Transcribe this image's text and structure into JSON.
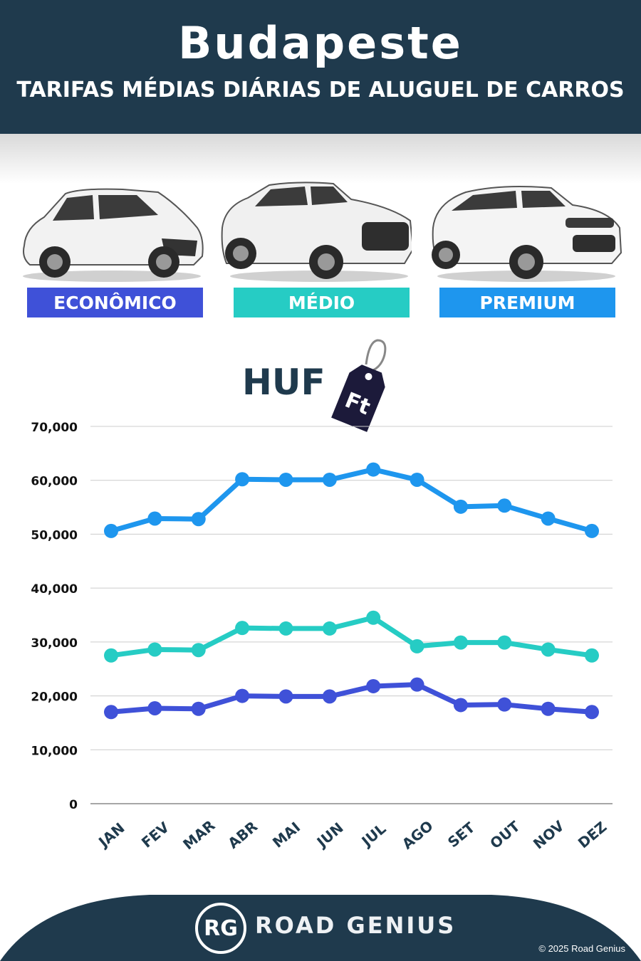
{
  "header": {
    "city": "Budapeste",
    "subtitle": "TARIFAS MÉDIAS DIÁRIAS DE ALUGUEL DE CARROS"
  },
  "categories": [
    {
      "label": "ECONÔMICO",
      "color": "#3f51d8"
    },
    {
      "label": "MÉDIO",
      "color": "#26ccc4"
    },
    {
      "label": "PREMIUM",
      "color": "#1e96ee"
    }
  ],
  "currency": {
    "code": "HUF",
    "symbol": "Ft"
  },
  "chart_data": {
    "type": "line",
    "categories": [
      "JAN",
      "FEV",
      "MAR",
      "ABR",
      "MAI",
      "JUN",
      "JUL",
      "AGO",
      "SET",
      "OUT",
      "NOV",
      "DEZ"
    ],
    "series": [
      {
        "name": "ECONÔMICO",
        "color": "#3f51d8",
        "values": [
          17000,
          17700,
          17600,
          20000,
          19900,
          19900,
          21800,
          22100,
          18300,
          18400,
          17600,
          17000
        ]
      },
      {
        "name": "MÉDIO",
        "color": "#26ccc4",
        "values": [
          27500,
          28600,
          28500,
          32600,
          32500,
          32500,
          34500,
          29200,
          29900,
          29900,
          28600,
          27500
        ]
      },
      {
        "name": "PREMIUM",
        "color": "#1e96ee",
        "values": [
          50600,
          52900,
          52800,
          60200,
          60100,
          60100,
          62000,
          60100,
          55100,
          55300,
          52900,
          50600
        ]
      }
    ],
    "yticks": [
      "0",
      "10,000",
      "20,000",
      "30,000",
      "40,000",
      "50,000",
      "60,000",
      "70,000"
    ],
    "ylim": [
      0,
      70000
    ],
    "grid": true
  },
  "footer": {
    "logo_text": "RG",
    "brand": "ROAD GENIUS",
    "copyright": "© 2025 Road Genius"
  }
}
